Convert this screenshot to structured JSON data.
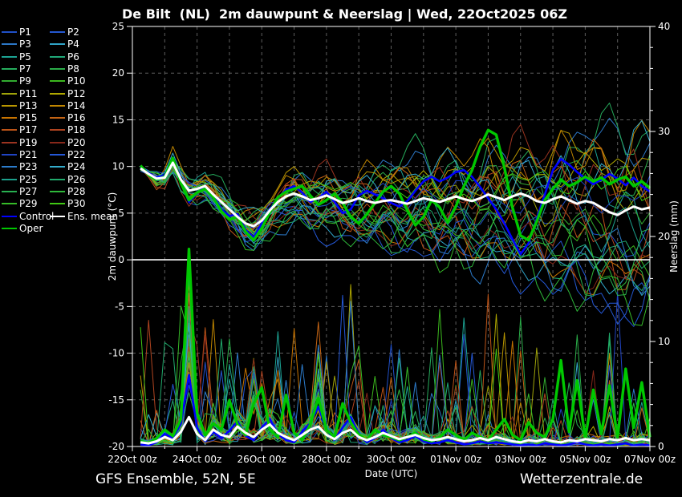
{
  "title": "De Bilt  (NL)  2m dauwpunt & Neerslag | Wed, 22Oct2025 06Z",
  "footer": {
    "left": "GFS Ensemble, 52N, 5E",
    "right": "Wetterzentrale.de"
  },
  "colors": {
    "background": "#000000",
    "grid": "#5e5e5e",
    "axis": "#ffffff",
    "text": "#ffffff",
    "control": "#0000ff",
    "ens_mean": "#ffffff",
    "oper": "#00c800"
  },
  "legend": {
    "items": [
      {
        "label": "P1",
        "color": "#2050c8"
      },
      {
        "label": "P2",
        "color": "#2458d0"
      },
      {
        "label": "P3",
        "color": "#2c78c8"
      },
      {
        "label": "P4",
        "color": "#30a4c8"
      },
      {
        "label": "P5",
        "color": "#1ca494"
      },
      {
        "label": "P6",
        "color": "#20a878"
      },
      {
        "label": "P7",
        "color": "#26ac5c"
      },
      {
        "label": "P8",
        "color": "#2aac48"
      },
      {
        "label": "P9",
        "color": "#32ac30"
      },
      {
        "label": "P10",
        "color": "#3cb81e"
      },
      {
        "label": "P11",
        "color": "#a0a40a"
      },
      {
        "label": "P12",
        "color": "#b0a800"
      },
      {
        "label": "P13",
        "color": "#b89600"
      },
      {
        "label": "P14",
        "color": "#c08600"
      },
      {
        "label": "P15",
        "color": "#c87400"
      },
      {
        "label": "P16",
        "color": "#c46414"
      },
      {
        "label": "P17",
        "color": "#bc5418"
      },
      {
        "label": "P18",
        "color": "#b04420"
      },
      {
        "label": "P19",
        "color": "#9c3420"
      },
      {
        "label": "P20",
        "color": "#88281a"
      },
      {
        "label": "P21",
        "color": "#2044c4"
      },
      {
        "label": "P22",
        "color": "#2458d8"
      },
      {
        "label": "P23",
        "color": "#2c7ccc"
      },
      {
        "label": "P24",
        "color": "#34accc"
      },
      {
        "label": "P25",
        "color": "#1ca08c"
      },
      {
        "label": "P26",
        "color": "#20aa6c"
      },
      {
        "label": "P27",
        "color": "#28b050"
      },
      {
        "label": "P28",
        "color": "#2eb83a"
      },
      {
        "label": "P29",
        "color": "#36bc28"
      },
      {
        "label": "P30",
        "color": "#40c814"
      },
      {
        "label": "Control",
        "color": "#0000ff"
      },
      {
        "label": "Ens. mean",
        "color": "#ffffff"
      },
      {
        "label": "Oper",
        "color": "#00c800"
      }
    ]
  },
  "chart_data": {
    "type": "line",
    "title": "De Bilt  (NL)  2m dauwpunt & Neerslag | Wed, 22Oct2025 06Z",
    "x_axis": {
      "label": "Date (UTC)",
      "range_days": [
        0,
        16
      ],
      "tick_days": [
        0,
        2,
        4,
        6,
        8,
        10,
        12,
        14,
        16
      ],
      "tick_labels": [
        "22Oct 00z",
        "24Oct 00z",
        "26Oct 00z",
        "28Oct 00z",
        "30Oct 00z",
        "01Nov 00z",
        "03Nov 00z",
        "05Nov 00z",
        "07Nov 00z"
      ],
      "minor_tick_every_days": 1,
      "grid": true
    },
    "y_left": {
      "label": "2m dauwpunt (°C)",
      "range": [
        -20,
        25
      ],
      "ticks": [
        25,
        20,
        15,
        10,
        5,
        0,
        -5,
        -10,
        -15,
        -20
      ],
      "zero_line": true,
      "grid": true
    },
    "y_right": {
      "label": "Neerslag (mm)",
      "range": [
        0,
        40
      ],
      "ticks": [
        40,
        30,
        20,
        10,
        0
      ],
      "minor_tick_every_mm": 2
    },
    "time": {
      "start_day": 0.25,
      "step_day": 0.25,
      "count": 64
    },
    "series": {
      "ens_mean_dewpoint": [
        9.8,
        9.2,
        8.7,
        8.8,
        10.4,
        8.6,
        7.4,
        7.6,
        7.9,
        7.0,
        6.2,
        5.4,
        4.6,
        3.9,
        3.6,
        4.2,
        5.3,
        6.2,
        6.8,
        7.1,
        6.8,
        6.4,
        6.6,
        6.9,
        6.5,
        6.1,
        6.3,
        6.6,
        6.3,
        6.1,
        6.3,
        6.4,
        6.2,
        6.0,
        6.3,
        6.6,
        6.4,
        6.2,
        6.5,
        6.8,
        6.5,
        6.3,
        6.6,
        7.0,
        6.7,
        6.4,
        6.8,
        7.1,
        6.8,
        6.3,
        6.1,
        6.5,
        6.8,
        6.4,
        6.0,
        6.3,
        6.1,
        5.6,
        5.1,
        4.8,
        5.3,
        5.7,
        5.4,
        5.6
      ],
      "control_dewpoint": [
        9.9,
        9.3,
        8.8,
        9.1,
        10.6,
        8.4,
        6.2,
        7.1,
        7.9,
        7.0,
        5.4,
        4.7,
        4.9,
        3.2,
        2.4,
        3.9,
        5.4,
        6.6,
        7.5,
        7.9,
        7.2,
        6.2,
        6.6,
        7.3,
        6.2,
        5.0,
        5.4,
        6.9,
        7.4,
        7.0,
        6.6,
        6.1,
        5.7,
        6.3,
        7.4,
        8.4,
        8.9,
        8.4,
        8.8,
        9.4,
        9.6,
        8.9,
        7.8,
        6.6,
        5.4,
        3.9,
        2.2,
        0.6,
        1.8,
        4.4,
        7.0,
        9.6,
        10.8,
        10.2,
        9.4,
        8.7,
        8.1,
        8.6,
        9.2,
        8.7,
        8.0,
        8.8,
        7.9,
        7.3
      ],
      "oper_dewpoint": [
        10.1,
        9.1,
        8.6,
        8.9,
        10.9,
        8.2,
        6.4,
        7.2,
        7.6,
        6.7,
        5.2,
        4.3,
        4.6,
        3.0,
        2.1,
        3.4,
        5.1,
        6.7,
        7.3,
        7.6,
        7.9,
        6.9,
        5.9,
        6.4,
        7.1,
        6.1,
        4.6,
        3.9,
        4.9,
        6.1,
        7.3,
        7.9,
        7.1,
        5.3,
        3.7,
        4.6,
        6.4,
        5.6,
        4.0,
        5.7,
        7.9,
        9.6,
        12.1,
        13.9,
        13.4,
        9.9,
        5.6,
        2.6,
        2.1,
        4.1,
        6.4,
        7.6,
        8.6,
        7.9,
        8.3,
        8.9,
        8.4,
        8.8,
        8.1,
        8.6,
        8.9,
        7.9,
        8.4,
        7.7
      ],
      "ens_mean_precip": [
        0.4,
        0.3,
        0.5,
        0.9,
        0.6,
        1.4,
        2.8,
        1.2,
        0.6,
        1.6,
        1.1,
        0.9,
        1.9,
        1.3,
        0.9,
        1.6,
        2.1,
        1.3,
        0.9,
        0.6,
        1.1,
        1.6,
        1.9,
        1.1,
        0.7,
        1.3,
        1.6,
        0.9,
        0.6,
        0.9,
        1.3,
        1.0,
        0.7,
        0.9,
        1.1,
        0.8,
        0.6,
        0.7,
        0.9,
        0.7,
        0.5,
        0.6,
        0.8,
        0.6,
        0.9,
        0.7,
        0.5,
        0.4,
        0.6,
        0.5,
        0.7,
        0.5,
        0.4,
        0.6,
        0.5,
        0.7,
        0.6,
        0.5,
        0.7,
        0.6,
        0.8,
        0.6,
        0.7,
        0.6
      ],
      "control_precip": [
        0.2,
        0.1,
        0.4,
        1.2,
        0.8,
        2.2,
        6.8,
        1.8,
        0.5,
        1.4,
        0.8,
        1.5,
        2.4,
        1.0,
        0.6,
        1.8,
        2.6,
        1.2,
        0.6,
        0.4,
        1.4,
        2.2,
        3.8,
        1.6,
        0.6,
        1.8,
        2.8,
        1.2,
        0.4,
        0.8,
        1.6,
        0.8,
        0.4,
        0.6,
        1.0,
        0.5,
        0.3,
        0.4,
        0.6,
        0.4,
        0.2,
        0.3,
        0.5,
        0.3,
        0.4,
        0.3,
        0.2,
        0.1,
        0.2,
        0.1,
        0.3,
        0.2,
        0.1,
        0.2,
        0.4,
        0.2,
        0.1,
        0.2,
        0.1,
        0.2,
        0.3,
        0.1,
        0.2,
        0.1
      ],
      "oper_precip": [
        0.5,
        0.3,
        0.8,
        1.6,
        1.0,
        2.6,
        18.8,
        3.2,
        1.1,
        2.2,
        1.6,
        4.4,
        2.1,
        1.1,
        4.1,
        5.6,
        1.6,
        0.9,
        4.9,
        1.3,
        0.6,
        2.1,
        4.6,
        1.6,
        0.9,
        4.1,
        2.3,
        1.1,
        0.6,
        1.6,
        1.1,
        0.9,
        0.6,
        0.9,
        1.3,
        0.7,
        0.5,
        0.9,
        1.6,
        1.1,
        0.6,
        1.3,
        0.9,
        0.6,
        1.6,
        2.6,
        1.1,
        0.6,
        2.3,
        1.3,
        0.9,
        2.6,
        8.2,
        1.4,
        6.3,
        0.8,
        5.4,
        1.2,
        5.8,
        0.9,
        7.4,
        1.8,
        6.1,
        0.9
      ],
      "style": {
        "ens_mean": {
          "color": "#ffffff",
          "width": 3
        },
        "control": {
          "color": "#0000ff",
          "width": 2.6
        },
        "oper": {
          "color": "#00c800",
          "width": 3.4
        },
        "member_width": 1
      }
    },
    "members": [
      {
        "label": "P1",
        "color": "#2050c8",
        "seed": 1
      },
      {
        "label": "P2",
        "color": "#2458d0",
        "seed": 2
      },
      {
        "label": "P3",
        "color": "#2c78c8",
        "seed": 3
      },
      {
        "label": "P4",
        "color": "#30a4c8",
        "seed": 4
      },
      {
        "label": "P5",
        "color": "#1ca494",
        "seed": 5
      },
      {
        "label": "P6",
        "color": "#20a878",
        "seed": 6
      },
      {
        "label": "P7",
        "color": "#26ac5c",
        "seed": 7
      },
      {
        "label": "P8",
        "color": "#2aac48",
        "seed": 8
      },
      {
        "label": "P9",
        "color": "#32ac30",
        "seed": 9
      },
      {
        "label": "P10",
        "color": "#3cb81e",
        "seed": 10
      },
      {
        "label": "P11",
        "color": "#a0a40a",
        "seed": 11
      },
      {
        "label": "P12",
        "color": "#b0a800",
        "seed": 12
      },
      {
        "label": "P13",
        "color": "#b89600",
        "seed": 13
      },
      {
        "label": "P14",
        "color": "#c08600",
        "seed": 14
      },
      {
        "label": "P15",
        "color": "#c87400",
        "seed": 15
      },
      {
        "label": "P16",
        "color": "#c46414",
        "seed": 16
      },
      {
        "label": "P17",
        "color": "#bc5418",
        "seed": 17
      },
      {
        "label": "P18",
        "color": "#b04420",
        "seed": 18
      },
      {
        "label": "P19",
        "color": "#9c3420",
        "seed": 19
      },
      {
        "label": "P20",
        "color": "#88281a",
        "seed": 20
      },
      {
        "label": "P21",
        "color": "#2044c4",
        "seed": 21
      },
      {
        "label": "P22",
        "color": "#2458d8",
        "seed": 22
      },
      {
        "label": "P23",
        "color": "#2c7ccc",
        "seed": 23
      },
      {
        "label": "P24",
        "color": "#34accc",
        "seed": 24
      },
      {
        "label": "P25",
        "color": "#1ca08c",
        "seed": 25
      },
      {
        "label": "P26",
        "color": "#20aa6c",
        "seed": 26
      },
      {
        "label": "P27",
        "color": "#28b050",
        "seed": 27
      },
      {
        "label": "P28",
        "color": "#2eb83a",
        "seed": 28
      },
      {
        "label": "P29",
        "color": "#36bc28",
        "seed": 29
      },
      {
        "label": "P30",
        "color": "#40c814",
        "seed": 30
      }
    ],
    "member_envelope": {
      "dewpoint_spread_start_c": 1.0,
      "dewpoint_spread_end_c": 9.0,
      "dewpoint_bias_range_end_c": [
        -11,
        7
      ],
      "precip_spike_max_mm": 19
    }
  }
}
